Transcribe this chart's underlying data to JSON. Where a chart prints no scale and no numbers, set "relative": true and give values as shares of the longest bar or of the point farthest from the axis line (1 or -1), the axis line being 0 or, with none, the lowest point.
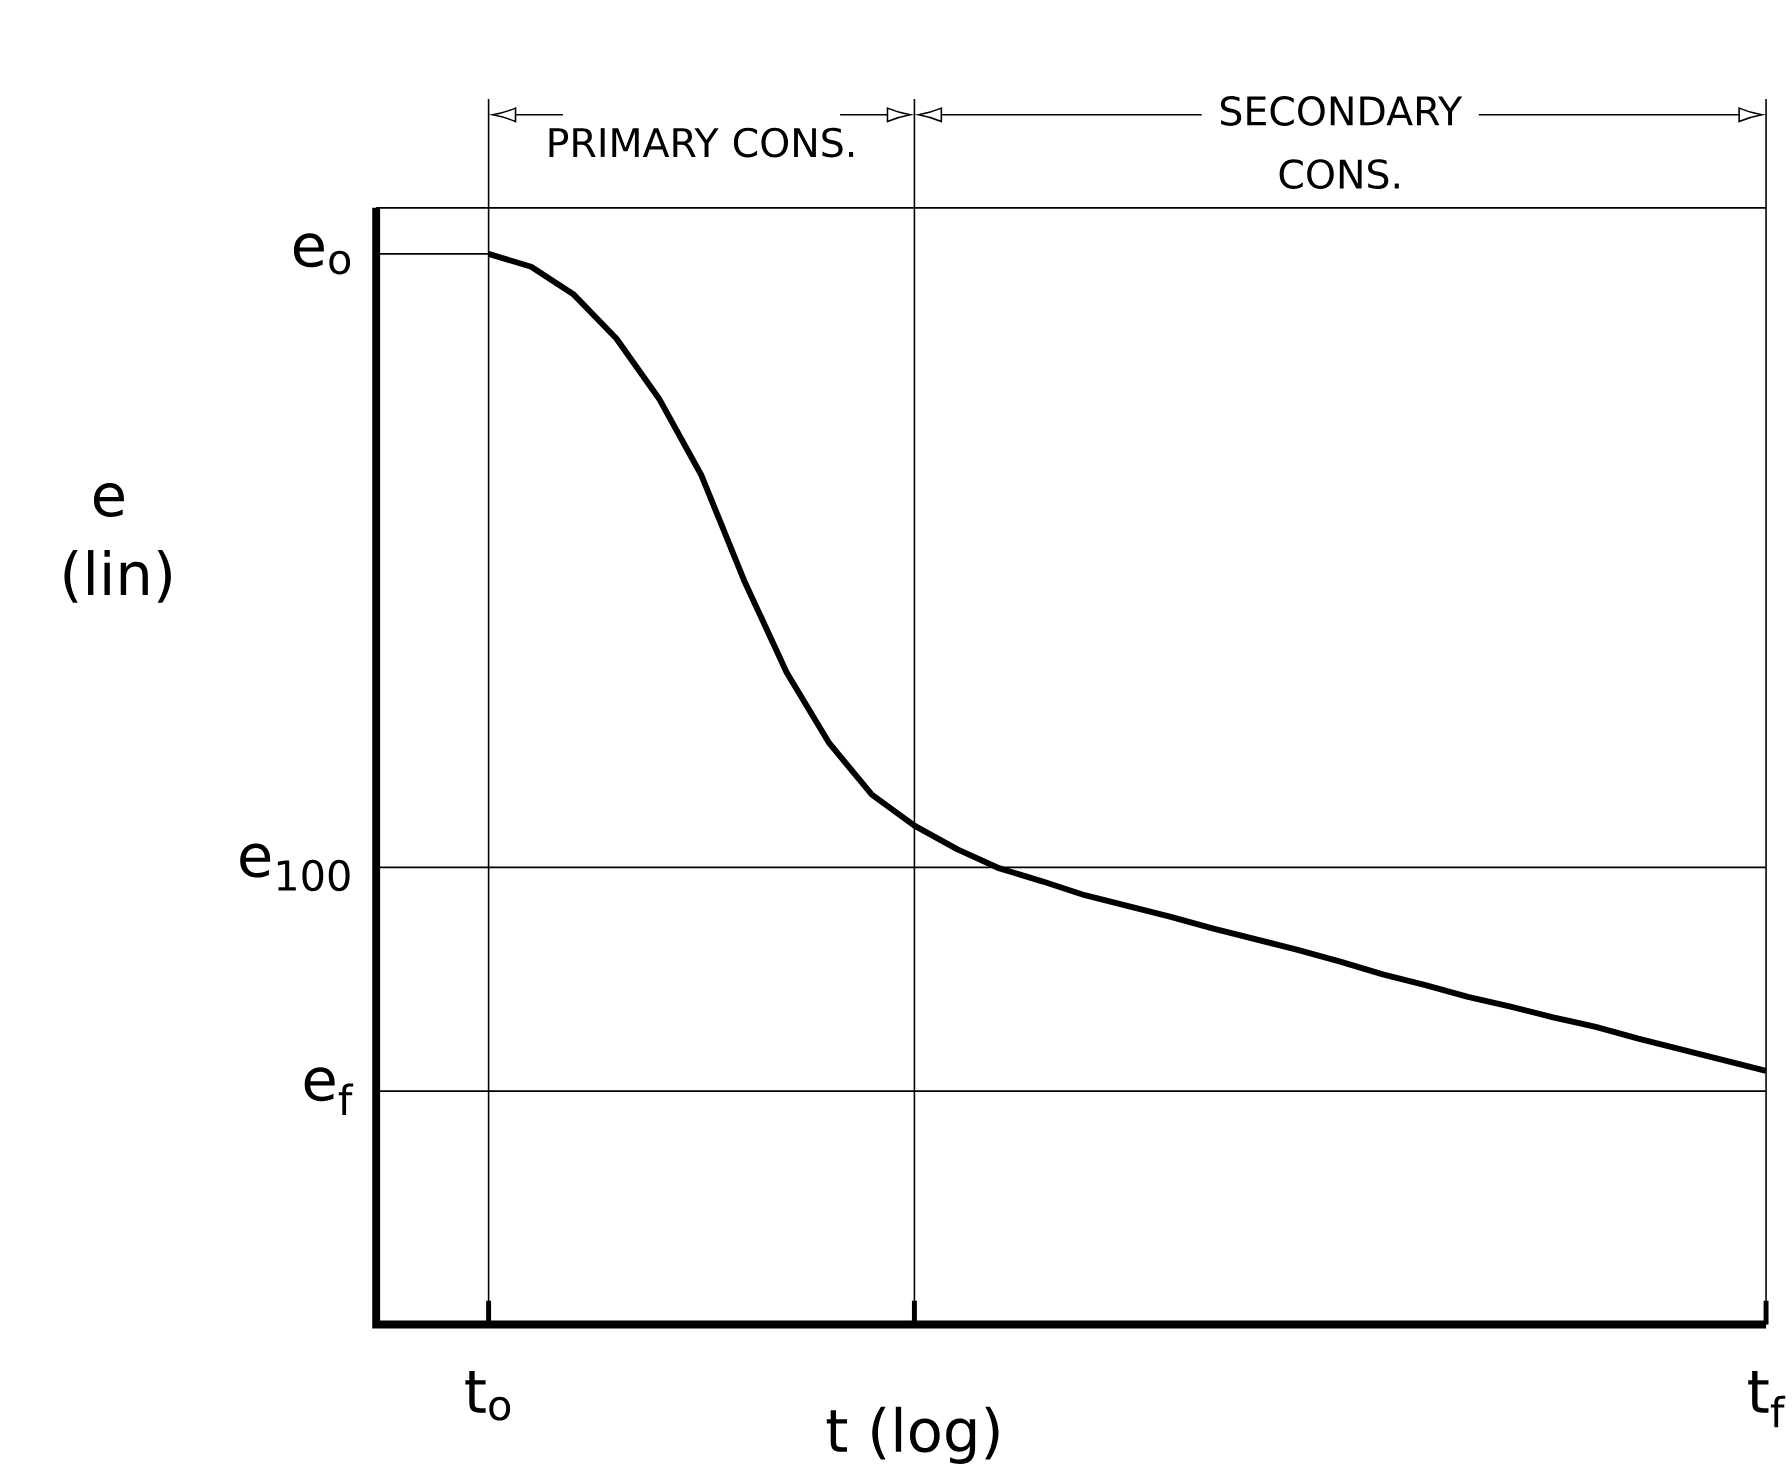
{
  "chart_data": {
    "type": "line",
    "relative": true,
    "xlabel": "t (log)",
    "ylabel": "e (lin)",
    "categories": [
      "t$_{o}$",
      null,
      null,
      null,
      null,
      null,
      null,
      null,
      null,
      null,
      null,
      null,
      null,
      null,
      null,
      null,
      null,
      null,
      null,
      null,
      null,
      null,
      null,
      null,
      null,
      null,
      null,
      null,
      null,
      null,
      "t$_{f}$"
    ],
    "values": [
      1.0,
      0.988,
      0.962,
      0.921,
      0.865,
      0.793,
      0.695,
      0.609,
      0.543,
      0.495,
      0.466,
      0.444,
      0.426,
      0.414,
      0.401,
      0.391,
      0.381,
      0.37,
      0.36,
      0.35,
      0.339,
      0.327,
      0.317,
      0.306,
      0.297,
      0.287,
      0.278,
      0.267,
      0.257,
      0.247,
      0.237
    ],
    "color": "#000000",
    "marker": "none",
    "line_style": "solid",
    "grid": "x",
    "ref_lines": [
      {
        "axis": "y",
        "value": 0.427,
        "label": "e$_{100}$"
      },
      {
        "axis": "y",
        "value": 0.218,
        "label": "e$_{f}$"
      }
    ],
    "annotations": [
      "e$_{o}$",
      "PRIMARY CONS.",
      "SECONDARY CONS."
    ]
  }
}
